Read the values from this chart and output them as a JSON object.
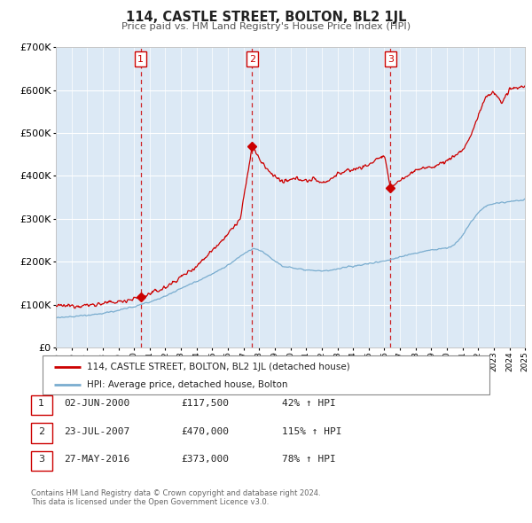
{
  "title": "114, CASTLE STREET, BOLTON, BL2 1JL",
  "subtitle": "Price paid vs. HM Land Registry's House Price Index (HPI)",
  "bg_color": "#dce9f5",
  "red_line_color": "#cc0000",
  "blue_line_color": "#7aadcf",
  "ylim": [
    0,
    700000
  ],
  "yticks": [
    0,
    100000,
    200000,
    300000,
    400000,
    500000,
    600000,
    700000
  ],
  "year_start": 1995,
  "year_end": 2025,
  "purchases": [
    {
      "date_num": 2000.42,
      "price": 117500,
      "label": "1"
    },
    {
      "date_num": 2007.55,
      "price": 470000,
      "label": "2"
    },
    {
      "date_num": 2016.4,
      "price": 373000,
      "label": "3"
    }
  ],
  "vline_color": "#cc0000",
  "legend_label_red": "114, CASTLE STREET, BOLTON, BL2 1JL (detached house)",
  "legend_label_blue": "HPI: Average price, detached house, Bolton",
  "table_rows": [
    {
      "num": "1",
      "date": "02-JUN-2000",
      "price": "£117,500",
      "hpi": "42% ↑ HPI"
    },
    {
      "num": "2",
      "date": "23-JUL-2007",
      "price": "£470,000",
      "hpi": "115% ↑ HPI"
    },
    {
      "num": "3",
      "date": "27-MAY-2016",
      "price": "£373,000",
      "hpi": "78% ↑ HPI"
    }
  ],
  "footer": "Contains HM Land Registry data © Crown copyright and database right 2024.\nThis data is licensed under the Open Government Licence v3.0."
}
